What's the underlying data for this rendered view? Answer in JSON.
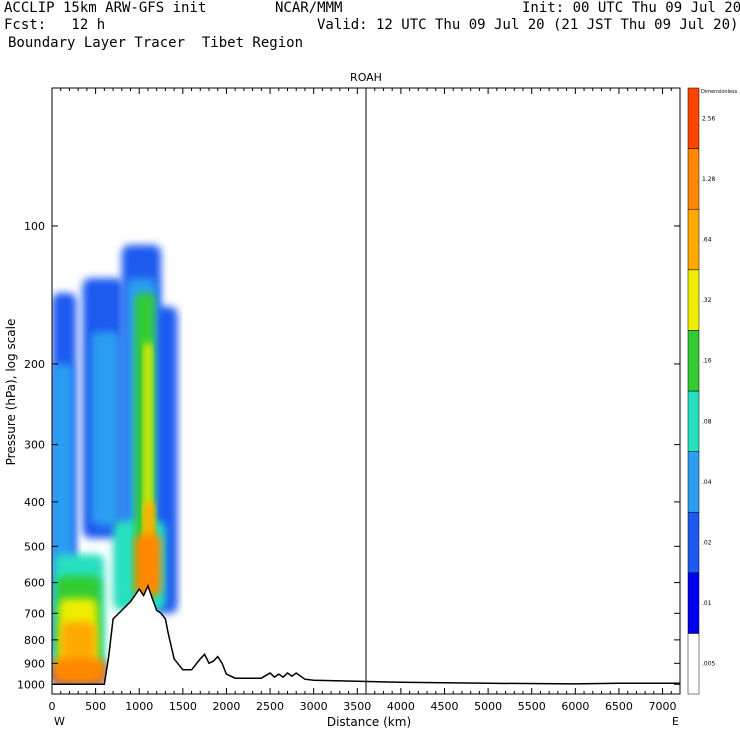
{
  "header": {
    "line1_left": "ACCLIP 15km ARW-GFS init",
    "line1_center": "NCAR/MMM",
    "line1_right": "Init: 00 UTC Thu 09 Jul 20",
    "line2_left": "Fcst:   12 h",
    "line2_right": "Valid: 12 UTC Thu 09 Jul 20 (21 JST Thu 09 Jul 20)",
    "line3_left": "Boundary Layer Tracer  Tibet Region"
  },
  "chart_data": {
    "type": "heatmap",
    "title": "ROAH",
    "xlabel": "Distance (km)",
    "ylabel": "Pressure (hPa), log scale",
    "xlim": [
      0,
      7200
    ],
    "ylim_hpa": [
      1050,
      50
    ],
    "y_scale": "log",
    "x_ticks": [
      0,
      500,
      1000,
      1500,
      2000,
      2500,
      3000,
      3500,
      4000,
      4500,
      5000,
      5500,
      6000,
      6500,
      7000
    ],
    "y_ticks": [
      100,
      200,
      300,
      400,
      500,
      600,
      700,
      800,
      900,
      1000
    ],
    "x_end_labels": {
      "left": "W",
      "right": "E"
    },
    "vertical_marker_km": 3600,
    "colorbar": {
      "unit_label": "Dimensionless",
      "levels": [
        ".005",
        ".01",
        ".02",
        ".04",
        ".08",
        ".16",
        ".32",
        ".64",
        "1.28",
        "2.56"
      ],
      "colors": [
        "#ffffff",
        "#0000ee",
        "#1e5af0",
        "#2b9ef2",
        "#27e0c0",
        "#33cc33",
        "#eeee00",
        "#ffaa00",
        "#ff8800",
        "#ff4400"
      ]
    },
    "terrain": {
      "distance_km": [
        0,
        300,
        600,
        650,
        700,
        800,
        900,
        950,
        1000,
        1050,
        1100,
        1150,
        1200,
        1250,
        1300,
        1330,
        1400,
        1500,
        1600,
        1700,
        1750,
        1800,
        1850,
        1900,
        1950,
        2000,
        2100,
        2200,
        2300,
        2400,
        2500,
        2550,
        2600,
        2650,
        2700,
        2750,
        2800,
        2850,
        2900,
        3000,
        3500,
        4000,
        5000,
        6000,
        6500,
        7000,
        7200
      ],
      "pressure_hpa": [
        1000,
        1000,
        1000,
        870,
        720,
        690,
        660,
        640,
        620,
        640,
        610,
        650,
        690,
        700,
        720,
        770,
        880,
        930,
        930,
        880,
        860,
        900,
        890,
        870,
        900,
        950,
        970,
        970,
        970,
        970,
        945,
        965,
        950,
        965,
        945,
        960,
        945,
        960,
        975,
        980,
        985,
        990,
        995,
        998,
        995,
        995,
        995
      ]
    },
    "tracer_field": {
      "description_note": "",
      "blobs": [
        {
          "level": 0,
          "x0": 0,
          "x1": 600,
          "p_top": 880,
          "p_bot": 1000
        },
        {
          "level": 1,
          "x0": 0,
          "x1": 280,
          "p_top": 140,
          "p_bot": 860
        },
        {
          "level": 1,
          "x0": 350,
          "x1": 820,
          "p_top": 130,
          "p_bot": 480
        },
        {
          "level": 1,
          "x0": 800,
          "x1": 1250,
          "p_top": 110,
          "p_bot": 620
        },
        {
          "level": 1,
          "x0": 1150,
          "x1": 1440,
          "p_top": 150,
          "p_bot": 700
        },
        {
          "level": 2,
          "x0": 0,
          "x1": 240,
          "p_top": 200,
          "p_bot": 900
        },
        {
          "level": 2,
          "x0": 450,
          "x1": 780,
          "p_top": 170,
          "p_bot": 450
        },
        {
          "level": 2,
          "x0": 850,
          "x1": 1200,
          "p_top": 130,
          "p_bot": 640
        },
        {
          "level": 3,
          "x0": 30,
          "x1": 600,
          "p_top": 520,
          "p_bot": 930
        },
        {
          "level": 3,
          "x0": 700,
          "x1": 1300,
          "p_top": 440,
          "p_bot": 690
        },
        {
          "level": 4,
          "x0": 50,
          "x1": 560,
          "p_top": 580,
          "p_bot": 950
        },
        {
          "level": 4,
          "x0": 950,
          "x1": 1180,
          "p_top": 140,
          "p_bot": 650
        },
        {
          "level": 5,
          "x0": 80,
          "x1": 520,
          "p_top": 650,
          "p_bot": 960
        },
        {
          "level": 5,
          "x0": 1050,
          "x1": 1150,
          "p_top": 180,
          "p_bot": 600
        },
        {
          "level": 6,
          "x0": 100,
          "x1": 500,
          "p_top": 730,
          "p_bot": 970
        },
        {
          "level": 6,
          "x0": 1050,
          "x1": 1180,
          "p_top": 400,
          "p_bot": 600
        },
        {
          "level": 7,
          "x0": 0,
          "x1": 620,
          "p_top": 880,
          "p_bot": 1000
        },
        {
          "level": 7,
          "x0": 950,
          "x1": 1250,
          "p_top": 470,
          "p_bot": 640
        }
      ]
    }
  }
}
